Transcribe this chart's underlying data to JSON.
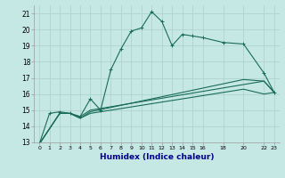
{
  "xlabel": "Humidex (Indice chaleur)",
  "bg_color": "#c5e8e5",
  "grid_color": "#afd4d0",
  "line_color": "#1a6b5a",
  "xlim": [
    -0.5,
    23.5
  ],
  "ylim": [
    13,
    21.5
  ],
  "xtick_positions": [
    0,
    1,
    2,
    3,
    4,
    5,
    6,
    7,
    8,
    9,
    10,
    11,
    12,
    13,
    14,
    15,
    16,
    18,
    20,
    22,
    23
  ],
  "xtick_labels": [
    "0",
    "1",
    "2",
    "3",
    "4",
    "5",
    "6",
    "7",
    "8",
    "9",
    "10",
    "11",
    "12",
    "13",
    "14",
    "15",
    "16",
    "18",
    "20",
    "22",
    "23"
  ],
  "yticks": [
    13,
    14,
    15,
    16,
    17,
    18,
    19,
    20,
    21
  ],
  "line1_x": [
    0,
    1,
    2,
    3,
    4,
    5,
    6,
    7,
    8,
    9,
    10,
    11,
    12,
    13,
    14,
    15,
    16,
    18,
    20,
    22,
    23
  ],
  "line1_y": [
    12.9,
    14.8,
    14.9,
    14.8,
    14.6,
    15.7,
    15.0,
    17.5,
    18.8,
    19.9,
    20.1,
    21.1,
    20.5,
    19.0,
    19.7,
    19.6,
    19.5,
    19.2,
    19.1,
    17.3,
    16.1
  ],
  "line2_x": [
    0,
    2,
    3,
    4,
    5,
    22,
    23
  ],
  "line2_y": [
    12.9,
    14.8,
    14.8,
    14.6,
    15.0,
    16.8,
    16.1
  ],
  "line3_x": [
    0,
    2,
    3,
    4,
    5,
    20,
    22,
    23
  ],
  "line3_y": [
    12.9,
    14.8,
    14.8,
    14.5,
    14.9,
    16.9,
    16.8,
    16.1
  ],
  "line4_x": [
    0,
    2,
    3,
    4,
    5,
    20,
    22,
    23
  ],
  "line4_y": [
    12.9,
    14.8,
    14.8,
    14.5,
    14.8,
    16.3,
    16.0,
    16.1
  ]
}
